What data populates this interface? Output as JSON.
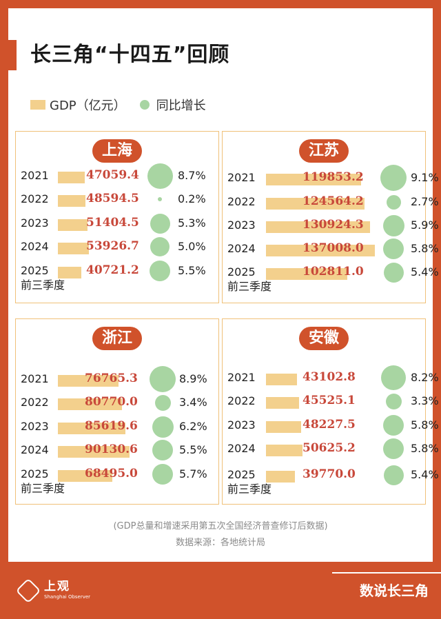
{
  "title": "长三角“十四五”回顾",
  "legend": {
    "gdp": "GDP（亿元）",
    "growth": "同比增长"
  },
  "footnote": "(GDP总量和增速采用第五次全国经济普查修订后数据)",
  "source": "数据来源：各地统计局",
  "logo": {
    "name": "上观",
    "en": "Shanghai Observer"
  },
  "brand": "数说长三角",
  "colors": {
    "accent": "#d0522b",
    "bar": "#f3d08d",
    "dot": "#a8d5a2",
    "value": "#c8483a"
  },
  "chart_data": [
    {
      "type": "bar",
      "title": "上海",
      "categories": [
        "2021",
        "2022",
        "2023",
        "2024",
        "2025"
      ],
      "category_note": "前三季度",
      "values": [
        47059.4,
        48594.5,
        51404.5,
        53926.7,
        40721.2
      ],
      "value_labels": [
        "47059.4",
        "48594.5",
        "51404.5",
        "53926.7",
        "40721.2"
      ],
      "growth": [
        8.7,
        0.2,
        5.3,
        5.0,
        5.5
      ],
      "growth_labels": [
        "8.7%",
        "0.2%",
        "5.3%",
        "5.0%",
        "5.5%"
      ]
    },
    {
      "type": "bar",
      "title": "江苏",
      "categories": [
        "2021",
        "2022",
        "2023",
        "2024",
        "2025"
      ],
      "category_note": "前三季度",
      "values": [
        119853.2,
        124564.2,
        130924.3,
        137008.0,
        102811.0
      ],
      "value_labels": [
        "119853.2",
        "124564.2",
        "130924.3",
        "137008.0",
        "102811.0"
      ],
      "growth": [
        9.1,
        2.7,
        5.9,
        5.8,
        5.4
      ],
      "growth_labels": [
        "9.1%",
        "2.7%",
        "5.9%",
        "5.8%",
        "5.4%"
      ]
    },
    {
      "type": "bar",
      "title": "浙江",
      "categories": [
        "2021",
        "2022",
        "2023",
        "2024",
        "2025"
      ],
      "category_note": "前三季度",
      "values": [
        76765.3,
        80770.0,
        85619.6,
        90130.6,
        68495.0
      ],
      "value_labels": [
        "76765.3",
        "80770.0",
        "85619.6",
        "90130.6",
        "68495.0"
      ],
      "growth": [
        8.9,
        3.4,
        6.2,
        5.5,
        5.7
      ],
      "growth_labels": [
        "8.9%",
        "3.4%",
        "6.2%",
        "5.5%",
        "5.7%"
      ]
    },
    {
      "type": "bar",
      "title": "安徽",
      "categories": [
        "2021",
        "2022",
        "2023",
        "2024",
        "2025"
      ],
      "category_note": "前三季度",
      "values": [
        43102.8,
        45525.1,
        48227.5,
        50625.2,
        39770.0
      ],
      "value_labels": [
        "43102.8",
        "45525.1",
        "48227.5",
        "50625.2",
        "39770.0"
      ],
      "growth": [
        8.2,
        3.3,
        5.8,
        5.8,
        5.4
      ],
      "growth_labels": [
        "8.2%",
        "3.3%",
        "5.8%",
        "5.8%",
        "5.4%"
      ]
    }
  ]
}
